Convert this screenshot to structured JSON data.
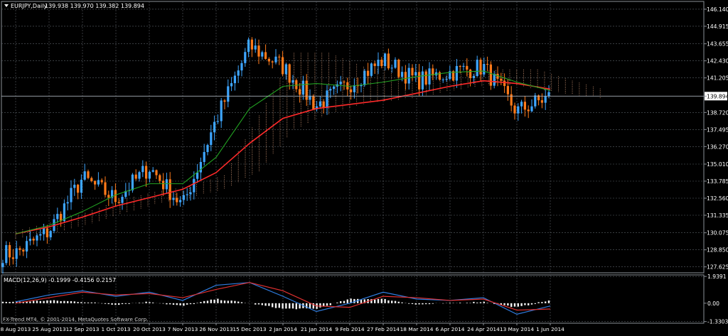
{
  "window": {
    "symbol_info": "EURJPY,Daily",
    "ohlc": "139.938 139.970 139.382 139.894",
    "footer": "FX-Trend MT4, © 2001-2014, MetaQuotes Software Corp."
  },
  "chart_data": [
    {
      "type": "candlestick",
      "title": "EURJPY,Daily",
      "subtitle": "139.938 139.970 139.382 139.894",
      "ylim": [
        127.2,
        146.7
      ],
      "y_ticks": [
        127.625,
        128.85,
        130.075,
        131.335,
        132.56,
        133.785,
        135.01,
        136.27,
        137.495,
        138.72,
        139.894,
        141.205,
        142.43,
        143.655,
        144.915,
        146.14
      ],
      "current_price": 139.894,
      "x_labels": [
        "8 Aug 2013",
        "25 Aug 2013",
        "12 Sep 2013",
        "1 Oct 2013",
        "20 Oct 2013",
        "7 Nov 2013",
        "26 Nov 2013",
        "15 Dec 2013",
        "2 Jan 2014",
        "21 Jan 2014",
        "9 Feb 2014",
        "27 Feb 2014",
        "18 Mar 2014",
        "6 Apr 2014",
        "24 Apr 2014",
        "13 May 2014",
        "1 Jun 2014"
      ],
      "close_path": {
        "x": [
          "8 Aug 2013",
          "25 Aug 2013",
          "12 Sep 2013",
          "1 Oct 2013",
          "20 Oct 2013",
          "7 Nov 2013",
          "26 Nov 2013",
          "15 Dec 2013",
          "2 Jan 2014",
          "21 Jan 2014",
          "9 Feb 2014",
          "27 Feb 2014",
          "18 Mar 2014",
          "6 Apr 2014",
          "24 Apr 2014",
          "13 May 2014",
          "1 Jun 2014"
        ],
        "y": [
          128.6,
          130.2,
          134.0,
          132.5,
          134.8,
          132.0,
          138.2,
          143.5,
          142.0,
          139.2,
          140.8,
          142.5,
          141.0,
          141.6,
          142.0,
          138.8,
          139.9
        ]
      },
      "moving_averages": [
        {
          "color": "#ff2a2a",
          "y": [
            130.0,
            130.5,
            131.2,
            132.0,
            132.6,
            133.2,
            134.4,
            136.5,
            138.3,
            139.0,
            139.3,
            139.6,
            140.1,
            140.6,
            141.0,
            140.8,
            140.4
          ]
        },
        {
          "color": "#22a322",
          "y": [
            130.0,
            130.6,
            131.6,
            132.8,
            133.6,
            133.6,
            135.5,
            139.0,
            140.6,
            140.8,
            140.6,
            140.9,
            141.3,
            141.6,
            141.7,
            140.9,
            140.3
          ]
        }
      ],
      "cloud": {
        "x_end": "1 Jun 2014",
        "upper": [
          130.2,
          130.8,
          131.5,
          132.4,
          133.0,
          133.4,
          134.2,
          138.5,
          143.0,
          143.0,
          142.0,
          141.6,
          141.6,
          141.6,
          141.8,
          141.8,
          141.0,
          140.3
        ],
        "lower": [
          129.6,
          130.0,
          130.6,
          131.4,
          132.1,
          132.6,
          133.2,
          134.5,
          137.5,
          138.6,
          139.3,
          139.6,
          140.0,
          140.5,
          140.8,
          140.4,
          140.0,
          139.7
        ]
      },
      "colors": {
        "bull": "#3ea6ff",
        "bear": "#ff7a1a",
        "cloud": "#e8a882",
        "grid": "#5a5f66"
      }
    },
    {
      "type": "macd",
      "label": "MACD(12,26,9) -0.1999 -0.4156 0.2157",
      "ylim": [
        -1.45,
        2.05
      ],
      "y_ticks": [
        1.9391,
        0.0,
        -1.3303
      ],
      "x_labels": [
        "8 Aug 2013",
        "25 Aug 2013",
        "12 Sep 2013",
        "1 Oct 2013",
        "20 Oct 2013",
        "7 Nov 2013",
        "26 Nov 2013",
        "15 Dec 2013",
        "2 Jan 2014",
        "21 Jan 2014",
        "9 Feb 2014",
        "27 Feb 2014",
        "18 Mar 2014",
        "6 Apr 2014",
        "24 Apr 2014",
        "13 May 2014",
        "1 Jun 2014"
      ],
      "macd": [
        0.1,
        0.6,
        0.9,
        0.5,
        0.8,
        0.2,
        1.3,
        1.5,
        0.5,
        -0.6,
        0.0,
        0.8,
        0.3,
        0.2,
        0.4,
        -0.8,
        -0.2
      ],
      "signal": [
        0.0,
        0.4,
        0.8,
        0.6,
        0.7,
        0.4,
        1.0,
        1.5,
        0.9,
        -0.2,
        -0.3,
        0.5,
        0.4,
        0.2,
        0.3,
        -0.5,
        -0.42
      ],
      "histogram": [
        0.1,
        0.2,
        0.1,
        -0.1,
        0.1,
        -0.2,
        0.3,
        0.0,
        -0.4,
        -0.4,
        0.3,
        0.3,
        -0.1,
        0.0,
        0.1,
        -0.3,
        0.2157
      ],
      "colors": {
        "macd": "#2f7de1",
        "signal": "#e03030"
      }
    }
  ]
}
